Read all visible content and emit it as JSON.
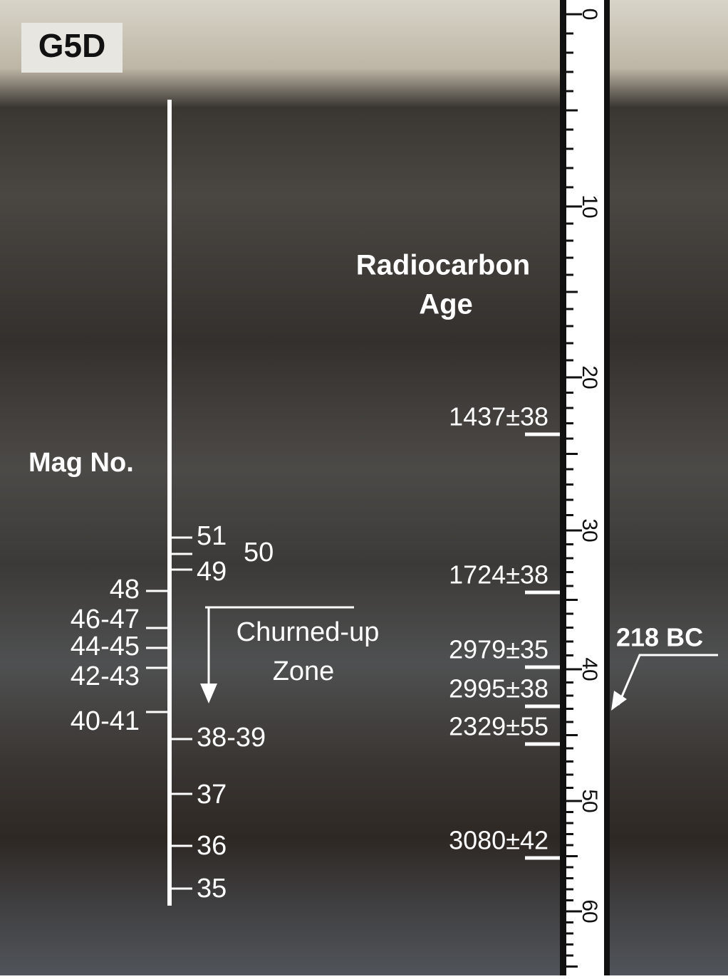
{
  "label": "G5D",
  "mag": {
    "title": "Mag No.",
    "labels": [
      "51",
      "50",
      "49",
      "48",
      "46-47",
      "44-45",
      "42-43",
      "40-41",
      "38-39",
      "37",
      "36",
      "35"
    ]
  },
  "radiocarbon": {
    "title": [
      "Radiocarbon",
      "Age"
    ],
    "dates": [
      "1437±38",
      "1724±38",
      "2979±35",
      "2995±38",
      "2329±55",
      "3080±42"
    ]
  },
  "zone": [
    "Churned-up",
    "Zone"
  ],
  "event": "218 BC",
  "ruler": {
    "labels": [
      "0",
      "10",
      "20",
      "30",
      "40",
      "50",
      "60"
    ]
  }
}
